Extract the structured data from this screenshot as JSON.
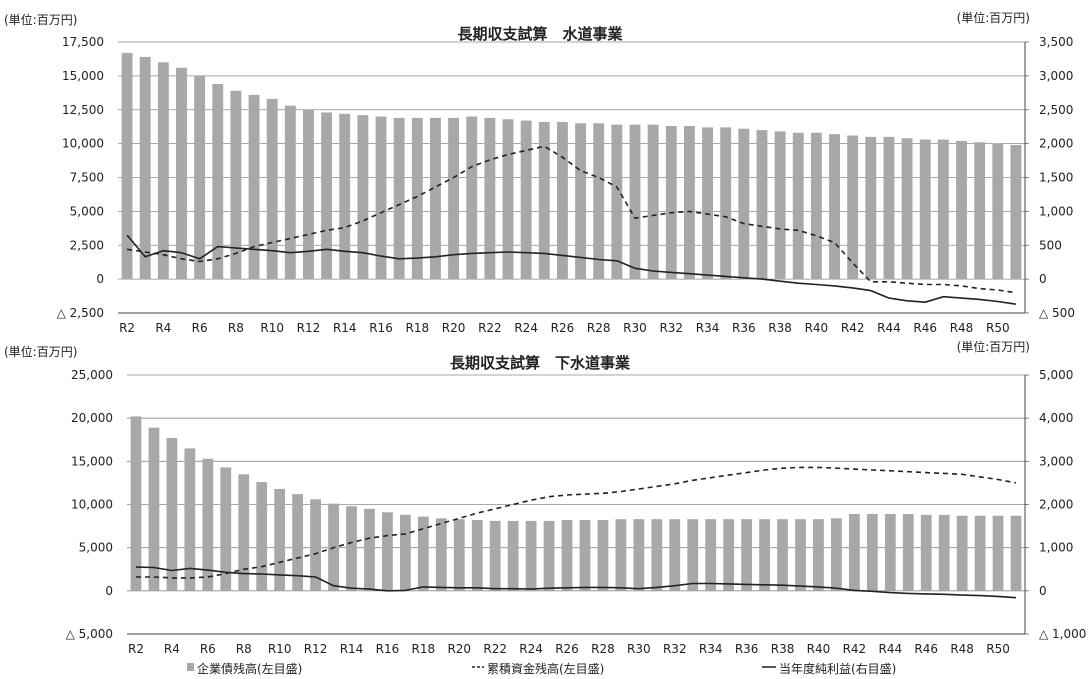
{
  "chart_data": [
    {
      "type": "bar",
      "title": "長期収支試算　水道事業",
      "unit_left": "(単位:百万円)",
      "unit_right": "(単位:百万円)",
      "ylim_left": [
        -2500,
        17500
      ],
      "ylim_right": [
        -500,
        3500
      ],
      "yticks_left": [
        -2500,
        0,
        2500,
        5000,
        7500,
        10000,
        12500,
        15000,
        17500
      ],
      "yticks_left_labels": [
        "△ 2,500",
        "0",
        "2,500",
        "5,000",
        "7,500",
        "10,000",
        "12,500",
        "15,000",
        "17,500"
      ],
      "yticks_right": [
        -500,
        0,
        500,
        1000,
        1500,
        2000,
        2500,
        3000,
        3500
      ],
      "yticks_right_labels": [
        "△ 500",
        "0",
        "500",
        "1,000",
        "1,500",
        "2,000",
        "2,500",
        "3,000",
        "3,500"
      ],
      "grid": true,
      "categories": [
        "R2",
        "R3",
        "R4",
        "R5",
        "R6",
        "R7",
        "R8",
        "R9",
        "R10",
        "R11",
        "R12",
        "R13",
        "R14",
        "R15",
        "R16",
        "R17",
        "R18",
        "R19",
        "R20",
        "R21",
        "R22",
        "R23",
        "R24",
        "R25",
        "R26",
        "R27",
        "R28",
        "R29",
        "R30",
        "R31",
        "R32",
        "R33",
        "R34",
        "R35",
        "R36",
        "R37",
        "R38",
        "R39",
        "R40",
        "R41",
        "R42",
        "R43",
        "R44",
        "R45",
        "R46",
        "R47",
        "R48",
        "R49",
        "R50",
        "R51"
      ],
      "xtick_labels": [
        "R2",
        "R4",
        "R6",
        "R8",
        "R10",
        "R12",
        "R14",
        "R16",
        "R18",
        "R20",
        "R22",
        "R24",
        "R26",
        "R28",
        "R30",
        "R32",
        "R34",
        "R36",
        "R38",
        "R40",
        "R42",
        "R44",
        "R46",
        "R48",
        "R50"
      ],
      "series": [
        {
          "name": "企業債残高(左目盛)",
          "kind": "bar",
          "axis": "left",
          "color": "#a8a8a8",
          "values": [
            16700,
            16400,
            16000,
            15600,
            15000,
            14400,
            13900,
            13600,
            13300,
            12800,
            12500,
            12300,
            12200,
            12100,
            12000,
            11900,
            11900,
            11900,
            11900,
            12000,
            11900,
            11800,
            11700,
            11600,
            11600,
            11500,
            11500,
            11400,
            11400,
            11400,
            11300,
            11300,
            11200,
            11200,
            11100,
            11000,
            10900,
            10800,
            10800,
            10700,
            10600,
            10500,
            10500,
            10400,
            10300,
            10300,
            10200,
            10100,
            10000,
            9900
          ]
        },
        {
          "name": "累積資金残高(左目盛)",
          "kind": "line",
          "dash": "5,4",
          "axis": "left",
          "color": "#222222",
          "values": [
            2200,
            2000,
            1800,
            1500,
            1300,
            1500,
            1900,
            2400,
            2700,
            3000,
            3300,
            3600,
            3800,
            4300,
            4900,
            5500,
            6100,
            6800,
            7500,
            8300,
            8800,
            9200,
            9500,
            9800,
            9000,
            8000,
            7500,
            6800,
            4500,
            4700,
            4900,
            5000,
            4800,
            4600,
            4100,
            3900,
            3700,
            3600,
            3200,
            2700,
            1200,
            -200,
            -200,
            -300,
            -400,
            -400,
            -500,
            -700,
            -800,
            -1000
          ]
        },
        {
          "name": "当年度純利益(右目盛)",
          "kind": "line",
          "dash": "",
          "axis": "right",
          "color": "#222222",
          "values": [
            650,
            330,
            420,
            390,
            300,
            480,
            460,
            440,
            420,
            390,
            410,
            440,
            410,
            390,
            340,
            300,
            310,
            330,
            360,
            380,
            390,
            400,
            390,
            380,
            350,
            320,
            290,
            270,
            160,
            120,
            100,
            80,
            60,
            40,
            20,
            0,
            -30,
            -60,
            -80,
            -100,
            -130,
            -170,
            -280,
            -320,
            -340,
            -260,
            -280,
            -300,
            -330,
            -370
          ]
        }
      ]
    },
    {
      "type": "bar",
      "title": "長期収支試算　下水道事業",
      "unit_left": "(単位:百万円)",
      "unit_right": "(単位:百万円)",
      "ylim_left": [
        -5000,
        25000
      ],
      "ylim_right": [
        -1000,
        5000
      ],
      "yticks_left": [
        -5000,
        0,
        5000,
        10000,
        15000,
        20000,
        25000
      ],
      "yticks_left_labels": [
        "△ 5,000",
        "0",
        "5,000",
        "10,000",
        "15,000",
        "20,000",
        "25,000"
      ],
      "yticks_right": [
        -1000,
        0,
        1000,
        2000,
        3000,
        4000,
        5000
      ],
      "yticks_right_labels": [
        "△ 1,000",
        "0",
        "1,000",
        "2,000",
        "3,000",
        "4,000",
        "5,000"
      ],
      "grid": true,
      "categories": [
        "R2",
        "R3",
        "R4",
        "R5",
        "R6",
        "R7",
        "R8",
        "R9",
        "R10",
        "R11",
        "R12",
        "R13",
        "R14",
        "R15",
        "R16",
        "R17",
        "R18",
        "R19",
        "R20",
        "R21",
        "R22",
        "R23",
        "R24",
        "R25",
        "R26",
        "R27",
        "R28",
        "R29",
        "R30",
        "R31",
        "R32",
        "R33",
        "R34",
        "R35",
        "R36",
        "R37",
        "R38",
        "R39",
        "R40",
        "R41",
        "R42",
        "R43",
        "R44",
        "R45",
        "R46",
        "R47",
        "R48",
        "R49",
        "R50",
        "R51"
      ],
      "xtick_labels": [
        "R2",
        "R4",
        "R6",
        "R8",
        "R10",
        "R12",
        "R14",
        "R16",
        "R18",
        "R20",
        "R22",
        "R24",
        "R26",
        "R28",
        "R30",
        "R32",
        "R34",
        "R36",
        "R38",
        "R40",
        "R42",
        "R44",
        "R46",
        "R48",
        "R50"
      ],
      "series": [
        {
          "name": "企業債残高(左目盛)",
          "kind": "bar",
          "axis": "left",
          "color": "#a8a8a8",
          "values": [
            20200,
            18900,
            17700,
            16500,
            15300,
            14300,
            13500,
            12600,
            11800,
            11200,
            10600,
            10100,
            9800,
            9500,
            9100,
            8800,
            8600,
            8400,
            8300,
            8200,
            8100,
            8100,
            8100,
            8100,
            8200,
            8200,
            8200,
            8300,
            8300,
            8300,
            8300,
            8300,
            8300,
            8300,
            8300,
            8300,
            8300,
            8300,
            8300,
            8400,
            8900,
            8900,
            8900,
            8900,
            8800,
            8800,
            8700,
            8700,
            8700,
            8700
          ]
        },
        {
          "name": "累積資金残高(左目盛)",
          "kind": "line",
          "dash": "5,4",
          "axis": "left",
          "color": "#222222",
          "values": [
            1600,
            1600,
            1500,
            1500,
            1600,
            2000,
            2500,
            2800,
            3300,
            3800,
            4300,
            5000,
            5600,
            6100,
            6400,
            6600,
            7200,
            7800,
            8400,
            9000,
            9500,
            10000,
            10500,
            10900,
            11100,
            11200,
            11300,
            11500,
            11800,
            12100,
            12400,
            12800,
            13100,
            13400,
            13700,
            14000,
            14200,
            14300,
            14300,
            14200,
            14100,
            14000,
            13900,
            13800,
            13700,
            13600,
            13500,
            13200,
            12900,
            12500
          ]
        },
        {
          "name": "当年度純利益(右目盛)",
          "kind": "line",
          "dash": "",
          "axis": "right",
          "color": "#222222",
          "values": [
            550,
            540,
            470,
            520,
            480,
            430,
            400,
            390,
            370,
            350,
            320,
            120,
            60,
            40,
            0,
            10,
            90,
            80,
            70,
            70,
            50,
            50,
            40,
            60,
            70,
            80,
            80,
            70,
            50,
            80,
            120,
            170,
            170,
            160,
            150,
            140,
            130,
            110,
            90,
            60,
            10,
            -10,
            -40,
            -60,
            -70,
            -80,
            -100,
            -110,
            -130,
            -160
          ]
        }
      ]
    }
  ],
  "legend": {
    "bar_label": "企業債残高(左目盛)",
    "dashed_label": "累積資金残高(左目盛)",
    "solid_label": "当年度純利益(右目盛)"
  }
}
